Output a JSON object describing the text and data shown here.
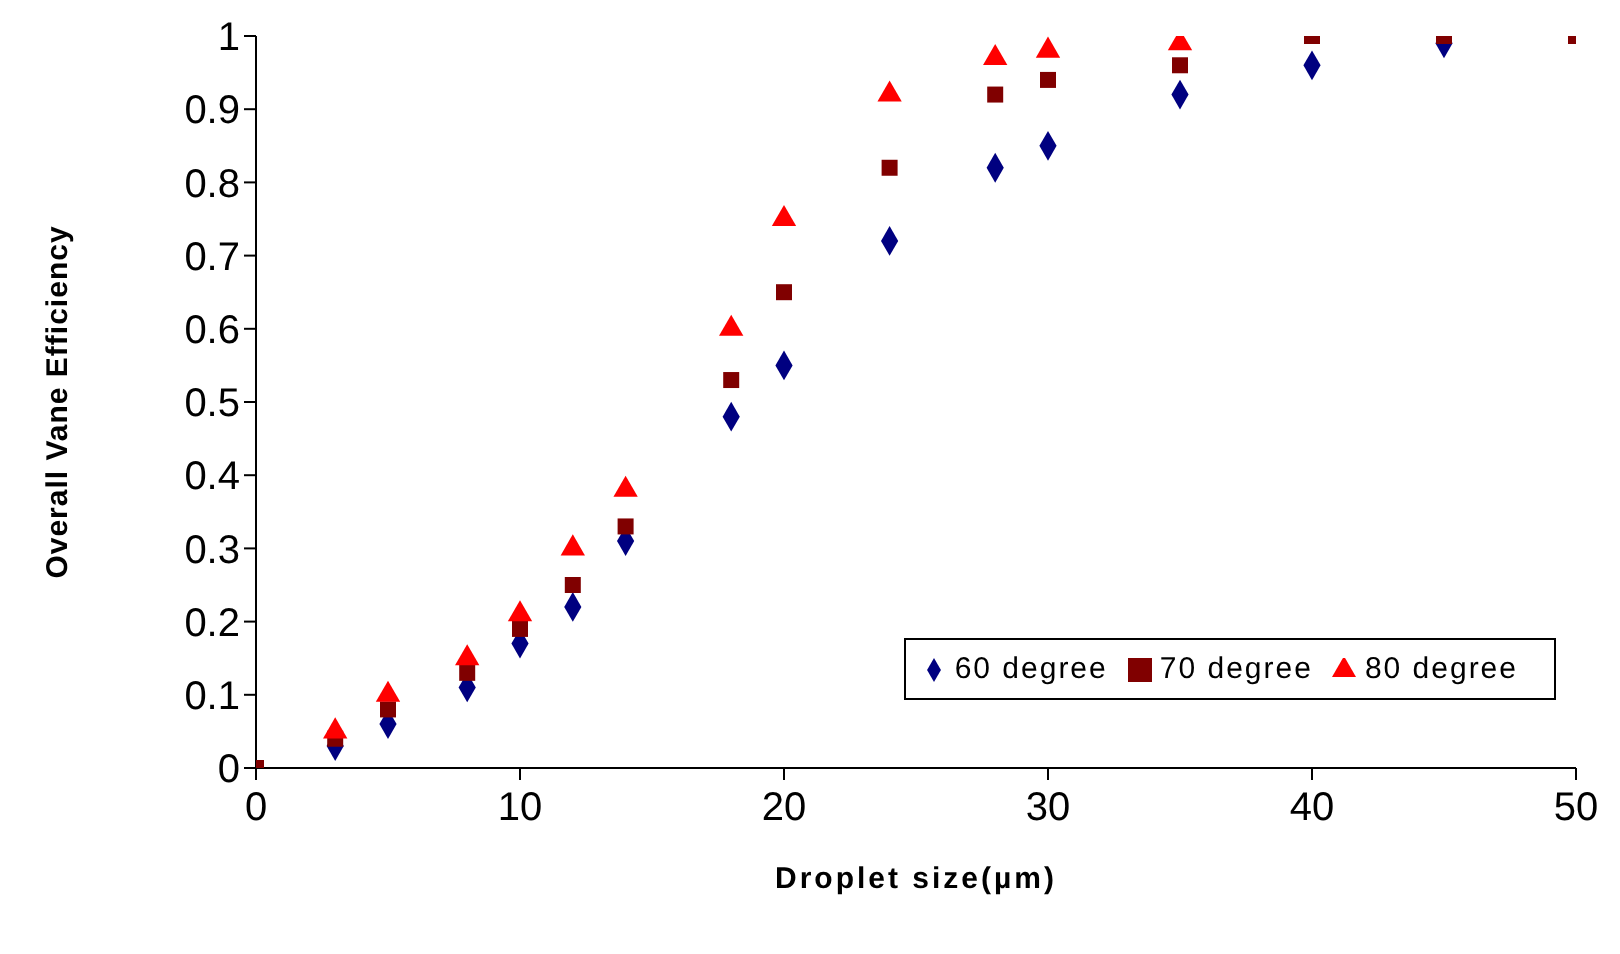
{
  "chart_data": {
    "type": "scatter",
    "xlabel": "Droplet size(µm)",
    "ylabel": "Overall Vane Efficiency",
    "x": [
      0,
      3,
      5,
      8,
      10,
      12,
      14,
      18,
      20,
      24,
      28,
      30,
      35,
      40,
      45,
      50
    ],
    "series": [
      {
        "name": "60 degree",
        "color": "#000080",
        "marker": "diamond",
        "values": [
          null,
          0.03,
          0.06,
          0.11,
          0.17,
          0.22,
          0.31,
          0.48,
          0.55,
          0.72,
          0.82,
          0.85,
          0.92,
          0.96,
          0.99,
          null
        ]
      },
      {
        "name": "70 degree",
        "color": "#800000",
        "marker": "square",
        "values": [
          0,
          0.04,
          0.08,
          0.13,
          0.19,
          0.25,
          0.33,
          0.53,
          0.65,
          0.82,
          0.92,
          0.94,
          0.96,
          1.0,
          1.0,
          1.0
        ]
      },
      {
        "name": "80 degree",
        "color": "#ff0000",
        "marker": "triangle",
        "values": [
          null,
          0.05,
          0.1,
          0.15,
          0.21,
          0.3,
          0.38,
          0.6,
          0.75,
          0.92,
          0.97,
          0.98,
          0.99,
          null,
          null,
          null
        ]
      }
    ],
    "xlim": [
      0,
      50
    ],
    "xticks": [
      0,
      10,
      20,
      30,
      40,
      50
    ],
    "ylim": [
      0,
      1
    ],
    "yticks": [
      0,
      0.1,
      0.2,
      0.3,
      0.4,
      0.5,
      0.6,
      0.7,
      0.8,
      0.9,
      1
    ],
    "grid": false,
    "legend": "bottom right"
  }
}
